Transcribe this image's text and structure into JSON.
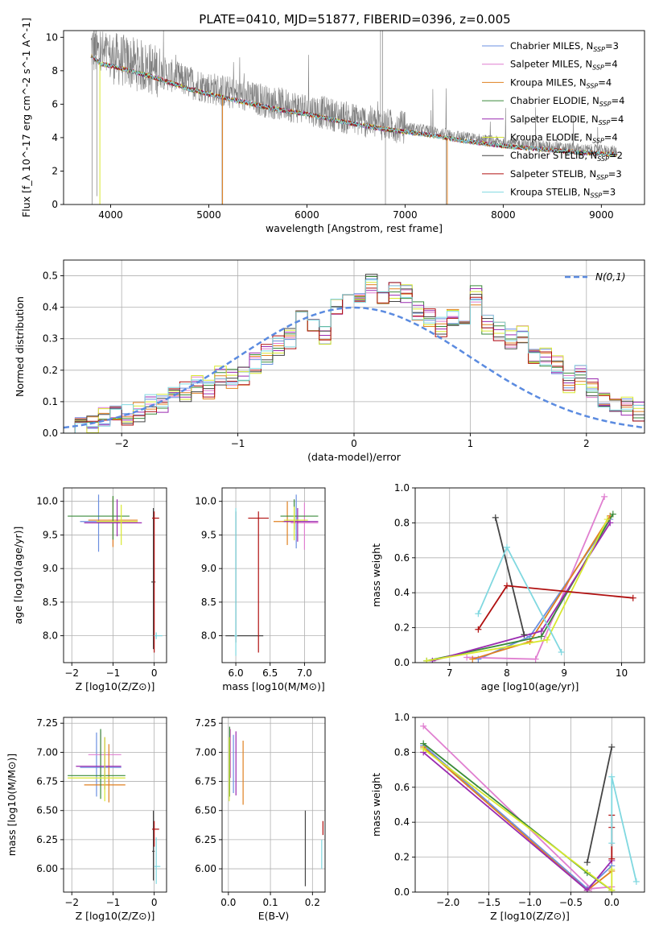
{
  "title": "PLATE=0410, MJD=51877, FIBERID=0396, z=0.005",
  "colors": {
    "Chabrier MILES": "#6b8fe0",
    "Salpeter MILES": "#e07fd0",
    "Kroupa MILES": "#e08020",
    "Chabrier ELODIE": "#3a8a3a",
    "Salpeter ELODIE": "#9a2ab0",
    "Kroupa ELODIE": "#d8e830",
    "Chabrier STELIB": "#444444",
    "Salpeter STELIB": "#b01010",
    "Kroupa STELIB": "#80d8e0",
    "normal": "#5b8be0",
    "data": "#7f7f7f"
  },
  "chart_data": [
    {
      "id": "spectrum",
      "type": "line",
      "xlabel": "wavelength [Angstrom, rest frame]",
      "ylabel": "Flux [f_λ 10^-17 erg cm^-2 s^-1 A^-1]",
      "xlim": [
        3520,
        9440
      ],
      "ylim": [
        0,
        10.4
      ],
      "xticks": [
        4000,
        5000,
        6000,
        7000,
        8000,
        9000
      ],
      "yticks": [
        0,
        2,
        4,
        6,
        8,
        10
      ],
      "grid": false,
      "legend_position": "top-right",
      "legend": [
        {
          "name": "Chabrier MILES",
          "nssp": "3"
        },
        {
          "name": "Salpeter MILES",
          "nssp": "4"
        },
        {
          "name": "Kroupa MILES",
          "nssp": "4"
        },
        {
          "name": "Chabrier ELODIE",
          "nssp": "4"
        },
        {
          "name": "Salpeter ELODIE",
          "nssp": "4"
        },
        {
          "name": "Kroupa ELODIE",
          "nssp": "4"
        },
        {
          "name": "Chabrier STELIB",
          "nssp": "2"
        },
        {
          "name": "Salpeter STELIB",
          "nssp": "3"
        },
        {
          "name": "Kroupa STELIB",
          "nssp": "3"
        }
      ],
      "model_continuum": {
        "x": [
          3800,
          3900,
          4000,
          4200,
          4500,
          4800,
          5000,
          5300,
          5600,
          6000,
          6400,
          6800,
          7200,
          7600,
          8000,
          8400,
          8800,
          9160
        ],
        "y": [
          8.9,
          8.4,
          8.3,
          8.0,
          7.5,
          6.9,
          6.6,
          6.2,
          5.8,
          5.4,
          4.9,
          4.5,
          4.2,
          3.8,
          3.5,
          3.3,
          3.1,
          3.0
        ]
      }
    },
    {
      "id": "residuals",
      "type": "step",
      "xlabel": "(data-model)/error",
      "ylabel": "Normed distribution",
      "xlim": [
        -2.5,
        2.5
      ],
      "ylim": [
        0,
        0.55
      ],
      "xticks": [
        -2,
        -1,
        0,
        1,
        2
      ],
      "yticks": [
        0.0,
        0.1,
        0.2,
        0.3,
        0.4,
        0.5
      ],
      "grid": true,
      "legend_position": "top-right",
      "normal_label": "N(0,1)",
      "bin_edges_start": -2.5,
      "bin_width": 0.1,
      "histogram": [
        0.02,
        0.02,
        0.03,
        0.05,
        0.07,
        0.06,
        0.07,
        0.09,
        0.1,
        0.11,
        0.13,
        0.15,
        0.14,
        0.18,
        0.17,
        0.18,
        0.22,
        0.25,
        0.28,
        0.3,
        0.36,
        0.34,
        0.31,
        0.4,
        0.41,
        0.43,
        0.48,
        0.44,
        0.45,
        0.44,
        0.39,
        0.37,
        0.34,
        0.36,
        0.38,
        0.44,
        0.34,
        0.32,
        0.3,
        0.32,
        0.25,
        0.24,
        0.22,
        0.16,
        0.19,
        0.14,
        0.1,
        0.09,
        0.08,
        0.07,
        0.06,
        0.05,
        0.03,
        0.02,
        0.02
      ]
    },
    {
      "id": "age_vs_Z",
      "type": "errorbar",
      "xlabel": "Z [log10(Z/Z⊙)]",
      "ylabel": "age [log10(age/yr)]",
      "xlim": [
        -2.2,
        0.3
      ],
      "ylim": [
        7.6,
        10.2
      ],
      "xticks": [
        -2,
        -1,
        0
      ],
      "yticks": [
        8.0,
        8.5,
        9.0,
        9.5,
        10.0
      ],
      "grid": true,
      "points": [
        {
          "model": "Chabrier MILES",
          "x": -1.35,
          "xerr": [
            0.45,
            0.5
          ],
          "y": 9.7,
          "yerr": [
            0.45,
            0.4
          ]
        },
        {
          "model": "Salpeter MILES",
          "x": -1.0,
          "xerr": [
            0.4,
            0.6
          ],
          "y": 9.68,
          "yerr": [
            0.35,
            0.35
          ]
        },
        {
          "model": "Kroupa MILES",
          "x": -1.0,
          "xerr": [
            0.6,
            0.6
          ],
          "y": 9.72,
          "yerr": [
            0.4,
            0.35
          ]
        },
        {
          "model": "Chabrier ELODIE",
          "x": -1.0,
          "xerr": [
            1.1,
            0.4
          ],
          "y": 9.78,
          "yerr": [
            0.35,
            0.3
          ]
        },
        {
          "model": "Salpeter ELODIE",
          "x": -0.9,
          "xerr": [
            0.8,
            0.6
          ],
          "y": 9.68,
          "yerr": [
            0.2,
            0.35
          ]
        },
        {
          "model": "Kroupa ELODIE",
          "x": -0.8,
          "xerr": [
            0.6,
            0.4
          ],
          "y": 9.7,
          "yerr": [
            0.35,
            0.25
          ]
        },
        {
          "model": "Chabrier STELIB",
          "x": -0.02,
          "xerr": [
            0.05,
            0.05
          ],
          "y": 8.8,
          "yerr": [
            1.0,
            1.1
          ]
        },
        {
          "model": "Salpeter STELIB",
          "x": 0.0,
          "xerr": [
            0.05,
            0.12
          ],
          "y": 9.75,
          "yerr": [
            2.0,
            0.1
          ]
        },
        {
          "model": "Kroupa STELIB",
          "x": 0.05,
          "xerr": [
            0.05,
            0.15
          ],
          "y": 8.0,
          "yerr": [
            0.05,
            0.05
          ]
        }
      ]
    },
    {
      "id": "age_vs_mass",
      "type": "errorbar",
      "xlabel": "mass [log10(M/M⊙)]",
      "ylabel": "",
      "xlim": [
        5.8,
        7.3
      ],
      "ylim": [
        7.6,
        10.2
      ],
      "xticks": [
        6.0,
        6.5,
        7.0
      ],
      "yticks": [
        8.0,
        8.5,
        9.0,
        9.5,
        10.0
      ],
      "grid": true,
      "points": [
        {
          "model": "Chabrier MILES",
          "x": 6.88,
          "xerr": [
            0.2,
            0.2
          ],
          "y": 9.7,
          "yerr": [
            0.4,
            0.4
          ]
        },
        {
          "model": "Salpeter MILES",
          "x": 7.0,
          "xerr": [
            0.2,
            0.2
          ],
          "y": 9.68,
          "yerr": [
            0.4,
            0.3
          ]
        },
        {
          "model": "Kroupa MILES",
          "x": 6.75,
          "xerr": [
            0.2,
            0.2
          ],
          "y": 9.7,
          "yerr": [
            0.35,
            0.3
          ]
        },
        {
          "model": "Chabrier ELODIE",
          "x": 6.85,
          "xerr": [
            0.2,
            0.35
          ],
          "y": 9.78,
          "yerr": [
            0.2,
            0.25
          ]
        },
        {
          "model": "Salpeter ELODIE",
          "x": 6.9,
          "xerr": [
            0.2,
            0.3
          ],
          "y": 9.7,
          "yerr": [
            0.3,
            0.2
          ]
        },
        {
          "model": "Kroupa ELODIE",
          "x": 6.85,
          "xerr": [
            0.15,
            0.2
          ],
          "y": 9.72,
          "yerr": [
            0.3,
            0.2
          ]
        },
        {
          "model": "Chabrier STELIB",
          "x": 6.0,
          "xerr": [
            0.15,
            0.4
          ],
          "y": 8.0,
          "yerr": [
            0.1,
            1.85
          ]
        },
        {
          "model": "Salpeter STELIB",
          "x": 6.33,
          "xerr": [
            0.15,
            0.15
          ],
          "y": 9.75,
          "yerr": [
            2.0,
            0.1
          ]
        },
        {
          "model": "Kroupa STELIB",
          "x": 6.0,
          "xerr": [
            0.02,
            0.02
          ],
          "y": 8.0,
          "yerr": [
            0.3,
            1.9
          ]
        }
      ]
    },
    {
      "id": "weight_vs_age",
      "type": "line",
      "xlabel": "age [log10(age/yr)]",
      "ylabel": "mass weight",
      "xlim": [
        6.4,
        10.4
      ],
      "ylim": [
        0,
        1.0
      ],
      "xticks": [
        7,
        8,
        9,
        10
      ],
      "yticks": [
        0.0,
        0.2,
        0.4,
        0.6,
        0.8,
        1.0
      ],
      "grid": true,
      "series": [
        {
          "model": "Chabrier MILES",
          "x": [
            7.5,
            8.4,
            9.8
          ],
          "y": [
            0.02,
            0.15,
            0.82
          ]
        },
        {
          "model": "Salpeter MILES",
          "x": [
            7.3,
            8.5,
            9.7
          ],
          "y": [
            0.03,
            0.02,
            0.95
          ]
        },
        {
          "model": "Kroupa MILES",
          "x": [
            7.4,
            8.4,
            9.8
          ],
          "y": [
            0.02,
            0.12,
            0.84
          ]
        },
        {
          "model": "Chabrier ELODIE",
          "x": [
            6.6,
            8.6,
            9.85
          ],
          "y": [
            0.01,
            0.15,
            0.85
          ]
        },
        {
          "model": "Salpeter ELODIE",
          "x": [
            6.7,
            8.6,
            9.8
          ],
          "y": [
            0.01,
            0.18,
            0.8
          ]
        },
        {
          "model": "Kroupa ELODIE",
          "x": [
            6.6,
            8.7,
            9.75
          ],
          "y": [
            0.01,
            0.13,
            0.82
          ]
        },
        {
          "model": "Chabrier STELIB",
          "x": [
            7.8,
            8.3
          ],
          "y": [
            0.83,
            0.16
          ]
        },
        {
          "model": "Salpeter STELIB",
          "x": [
            7.5,
            8.0,
            10.2
          ],
          "y": [
            0.19,
            0.44,
            0.37
          ]
        },
        {
          "model": "Kroupa STELIB",
          "x": [
            7.5,
            8.0,
            8.95
          ],
          "y": [
            0.28,
            0.66,
            0.06
          ]
        }
      ]
    },
    {
      "id": "mass_vs_Z",
      "type": "errorbar",
      "xlabel": "Z [log10(Z/Z⊙)]",
      "ylabel": "mass [log10(M/M⊙)]",
      "xlim": [
        -2.2,
        0.3
      ],
      "ylim": [
        5.8,
        7.3
      ],
      "xticks": [
        -2,
        -1,
        0
      ],
      "yticks": [
        6.0,
        6.25,
        6.5,
        6.75,
        7.0,
        7.25
      ],
      "grid": true,
      "points": [
        {
          "model": "Chabrier MILES",
          "x": -1.4,
          "xerr": [
            0.4,
            0.6
          ],
          "y": 6.87,
          "yerr": [
            0.25,
            0.3
          ]
        },
        {
          "model": "Salpeter MILES",
          "x": -1.3,
          "xerr": [
            0.3,
            0.5
          ],
          "y": 6.98,
          "yerr": [
            0.2,
            0.2
          ]
        },
        {
          "model": "Kroupa MILES",
          "x": -1.1,
          "xerr": [
            0.6,
            0.4
          ],
          "y": 6.72,
          "yerr": [
            0.15,
            0.35
          ]
        },
        {
          "model": "Chabrier ELODIE",
          "x": -1.3,
          "xerr": [
            0.8,
            0.6
          ],
          "y": 6.8,
          "yerr": [
            0.2,
            0.4
          ]
        },
        {
          "model": "Salpeter ELODIE",
          "x": -1.2,
          "xerr": [
            0.7,
            0.4
          ],
          "y": 6.88,
          "yerr": [
            0.2,
            0.25
          ]
        },
        {
          "model": "Kroupa ELODIE",
          "x": -1.2,
          "xerr": [
            0.9,
            0.5
          ],
          "y": 6.78,
          "yerr": [
            0.2,
            0.35
          ]
        },
        {
          "model": "Chabrier STELIB",
          "x": -0.02,
          "xerr": [
            0.03,
            0.03
          ],
          "y": 6.15,
          "yerr": [
            0.25,
            0.35
          ]
        },
        {
          "model": "Salpeter STELIB",
          "x": 0.0,
          "xerr": [
            0.05,
            0.12
          ],
          "y": 6.34,
          "yerr": [
            0.15,
            0.07
          ]
        },
        {
          "model": "Kroupa STELIB",
          "x": 0.05,
          "xerr": [
            0.05,
            0.1
          ],
          "y": 6.02,
          "yerr": [
            0.15,
            0.25
          ]
        }
      ]
    },
    {
      "id": "mass_vs_EBV",
      "type": "errorbar",
      "xlabel": "E(B-V)",
      "ylabel": "",
      "xlim": [
        -0.015,
        0.23
      ],
      "ylim": [
        5.8,
        7.3
      ],
      "xticks": [
        0.0,
        0.1,
        0.2
      ],
      "yticks": [
        6.0,
        6.25,
        6.5,
        6.75,
        7.0,
        7.25
      ],
      "grid": true,
      "points": [
        {
          "model": "Chabrier MILES",
          "x": 0.012,
          "xerr": [
            0.0,
            0.0
          ],
          "y": 6.85,
          "yerr": [
            0.2,
            0.3
          ]
        },
        {
          "model": "Salpeter MILES",
          "x": 0.005,
          "xerr": [
            0.0,
            0.0
          ],
          "y": 6.98,
          "yerr": [
            0.2,
            0.22
          ]
        },
        {
          "model": "Kroupa MILES",
          "x": 0.035,
          "xerr": [
            0.0,
            0.0
          ],
          "y": 6.75,
          "yerr": [
            0.2,
            0.35
          ]
        },
        {
          "model": "Chabrier ELODIE",
          "x": 0.003,
          "xerr": [
            0.0,
            0.0
          ],
          "y": 6.82,
          "yerr": [
            0.2,
            0.4
          ]
        },
        {
          "model": "Salpeter ELODIE",
          "x": 0.018,
          "xerr": [
            0.0,
            0.0
          ],
          "y": 6.88,
          "yerr": [
            0.25,
            0.3
          ]
        },
        {
          "model": "Kroupa ELODIE",
          "x": 0.002,
          "xerr": [
            0.0,
            0.0
          ],
          "y": 6.78,
          "yerr": [
            0.2,
            0.35
          ]
        },
        {
          "model": "Chabrier STELIB",
          "x": 0.183,
          "xerr": [
            0.0,
            0.0
          ],
          "y": 6.15,
          "yerr": [
            0.3,
            0.35
          ]
        },
        {
          "model": "Salpeter STELIB",
          "x": 0.225,
          "xerr": [
            0.0,
            0.0
          ],
          "y": 6.34,
          "yerr": [
            0.05,
            0.07
          ]
        },
        {
          "model": "Kroupa STELIB",
          "x": 0.222,
          "xerr": [
            0.0,
            0.0
          ],
          "y": 6.1,
          "yerr": [
            0.1,
            0.15
          ]
        }
      ]
    },
    {
      "id": "weight_vs_Z",
      "type": "line",
      "xlabel": "Z [log10(Z/Z⊙)]",
      "ylabel": "mass weight",
      "xlim": [
        -2.4,
        0.4
      ],
      "ylim": [
        0,
        1.0
      ],
      "xticks": [
        -2.0,
        -1.5,
        -1.0,
        -0.5,
        0.0
      ],
      "yticks": [
        0.0,
        0.2,
        0.4,
        0.6,
        0.8,
        1.0
      ],
      "grid": true,
      "series": [
        {
          "model": "Chabrier MILES",
          "x": [
            -2.3,
            -0.3,
            0.0
          ],
          "y": [
            0.84,
            0.02,
            0.15
          ]
        },
        {
          "model": "Salpeter MILES",
          "x": [
            -2.3,
            -0.25,
            0.0
          ],
          "y": [
            0.95,
            0.02,
            0.03
          ]
        },
        {
          "model": "Kroupa MILES",
          "x": [
            -2.3,
            -0.3,
            0.0
          ],
          "y": [
            0.83,
            0.01,
            0.12
          ]
        },
        {
          "model": "Chabrier ELODIE",
          "x": [
            -2.3,
            -0.3,
            0.0
          ],
          "y": [
            0.85,
            0.11,
            0.01
          ]
        },
        {
          "model": "Salpeter ELODIE",
          "x": [
            -2.3,
            -0.3,
            0.0
          ],
          "y": [
            0.8,
            0.01,
            0.18
          ]
        },
        {
          "model": "Kroupa ELODIE",
          "x": [
            -2.3,
            0.0,
            0.0
          ],
          "y": [
            0.82,
            0.01,
            0.13
          ]
        },
        {
          "model": "Chabrier STELIB",
          "x": [
            -0.3,
            0.0
          ],
          "y": [
            0.17,
            0.83
          ]
        },
        {
          "model": "Salpeter STELIB",
          "x": [
            0.0,
            0.0,
            0.0
          ],
          "y": [
            0.19,
            0.44,
            0.37
          ]
        },
        {
          "model": "Kroupa STELIB",
          "x": [
            0.0,
            0.0,
            0.3
          ],
          "y": [
            0.28,
            0.66,
            0.06
          ]
        }
      ]
    }
  ]
}
